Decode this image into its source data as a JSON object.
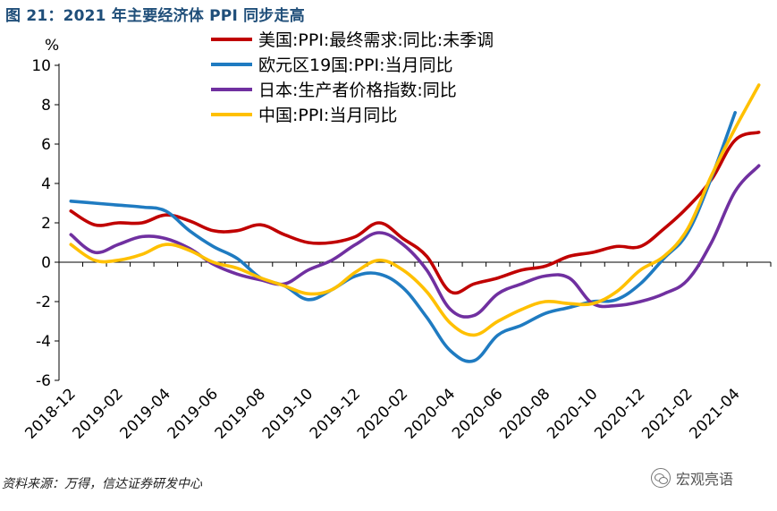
{
  "title": "图 21：2021 年主要经济体 PPI 同步走高",
  "source": "资料来源：万得，信达证券研发中心",
  "watermark": "宏观亮语",
  "chart_data": {
    "type": "line",
    "ylabel": "%",
    "ylim": [
      -6,
      10
    ],
    "yticks": [
      10,
      8,
      6,
      4,
      2,
      0,
      -2,
      -4,
      -6
    ],
    "grid": false,
    "legend_position": "top-center",
    "x": [
      "2018-12",
      "2019-01",
      "2019-02",
      "2019-03",
      "2019-04",
      "2019-05",
      "2019-06",
      "2019-07",
      "2019-08",
      "2019-09",
      "2019-10",
      "2019-11",
      "2019-12",
      "2020-01",
      "2020-02",
      "2020-03",
      "2020-04",
      "2020-05",
      "2020-06",
      "2020-07",
      "2020-08",
      "2020-09",
      "2020-10",
      "2020-11",
      "2020-12",
      "2021-01",
      "2021-02",
      "2021-03",
      "2021-04",
      "2021-05"
    ],
    "xtick_labels": [
      "2018-12",
      "2019-02",
      "2019-04",
      "2019-06",
      "2019-08",
      "2019-10",
      "2019-12",
      "2020-02",
      "2020-04",
      "2020-06",
      "2020-08",
      "2020-10",
      "2020-12",
      "2021-02",
      "2021-04"
    ],
    "series": [
      {
        "name": "美国:PPI:最终需求:同比:未季调",
        "color": "#c00000",
        "values": [
          2.6,
          1.9,
          2.0,
          2.0,
          2.4,
          2.1,
          1.6,
          1.6,
          1.9,
          1.4,
          1.0,
          1.0,
          1.3,
          2.0,
          1.2,
          0.3,
          -1.5,
          -1.1,
          -0.8,
          -0.4,
          -0.2,
          0.3,
          0.5,
          0.8,
          0.8,
          1.7,
          2.8,
          4.2,
          6.2,
          6.6
        ]
      },
      {
        "name": "欧元区19国:PPI:当月同比",
        "color": "#1f7bc1",
        "values": [
          3.1,
          3.0,
          2.9,
          2.8,
          2.6,
          1.6,
          0.8,
          0.2,
          -0.8,
          -1.2,
          -1.9,
          -1.4,
          -0.7,
          -0.6,
          -1.3,
          -2.8,
          -4.5,
          -5.0,
          -3.7,
          -3.2,
          -2.6,
          -2.3,
          -2.0,
          -1.9,
          -1.1,
          0.2,
          1.5,
          4.3,
          7.6,
          null
        ]
      },
      {
        "name": "日本:生产者价格指数:同比",
        "color": "#7030a0",
        "values": [
          1.4,
          0.5,
          0.9,
          1.3,
          1.2,
          0.7,
          -0.1,
          -0.6,
          -0.9,
          -1.1,
          -0.4,
          0.1,
          0.9,
          1.5,
          0.9,
          -0.4,
          -2.4,
          -2.7,
          -1.6,
          -1.1,
          -0.7,
          -0.8,
          -2.1,
          -2.2,
          -2.0,
          -1.6,
          -0.9,
          1.0,
          3.6,
          4.9
        ]
      },
      {
        "name": "中国:PPI:当月同比",
        "color": "#ffc000",
        "values": [
          0.9,
          0.1,
          0.1,
          0.4,
          0.9,
          0.6,
          0.0,
          -0.3,
          -0.8,
          -1.2,
          -1.6,
          -1.4,
          -0.5,
          0.1,
          -0.4,
          -1.5,
          -3.1,
          -3.7,
          -3.0,
          -2.4,
          -2.0,
          -2.1,
          -2.1,
          -1.5,
          -0.4,
          0.3,
          1.7,
          4.4,
          6.8,
          9.0
        ]
      }
    ]
  }
}
